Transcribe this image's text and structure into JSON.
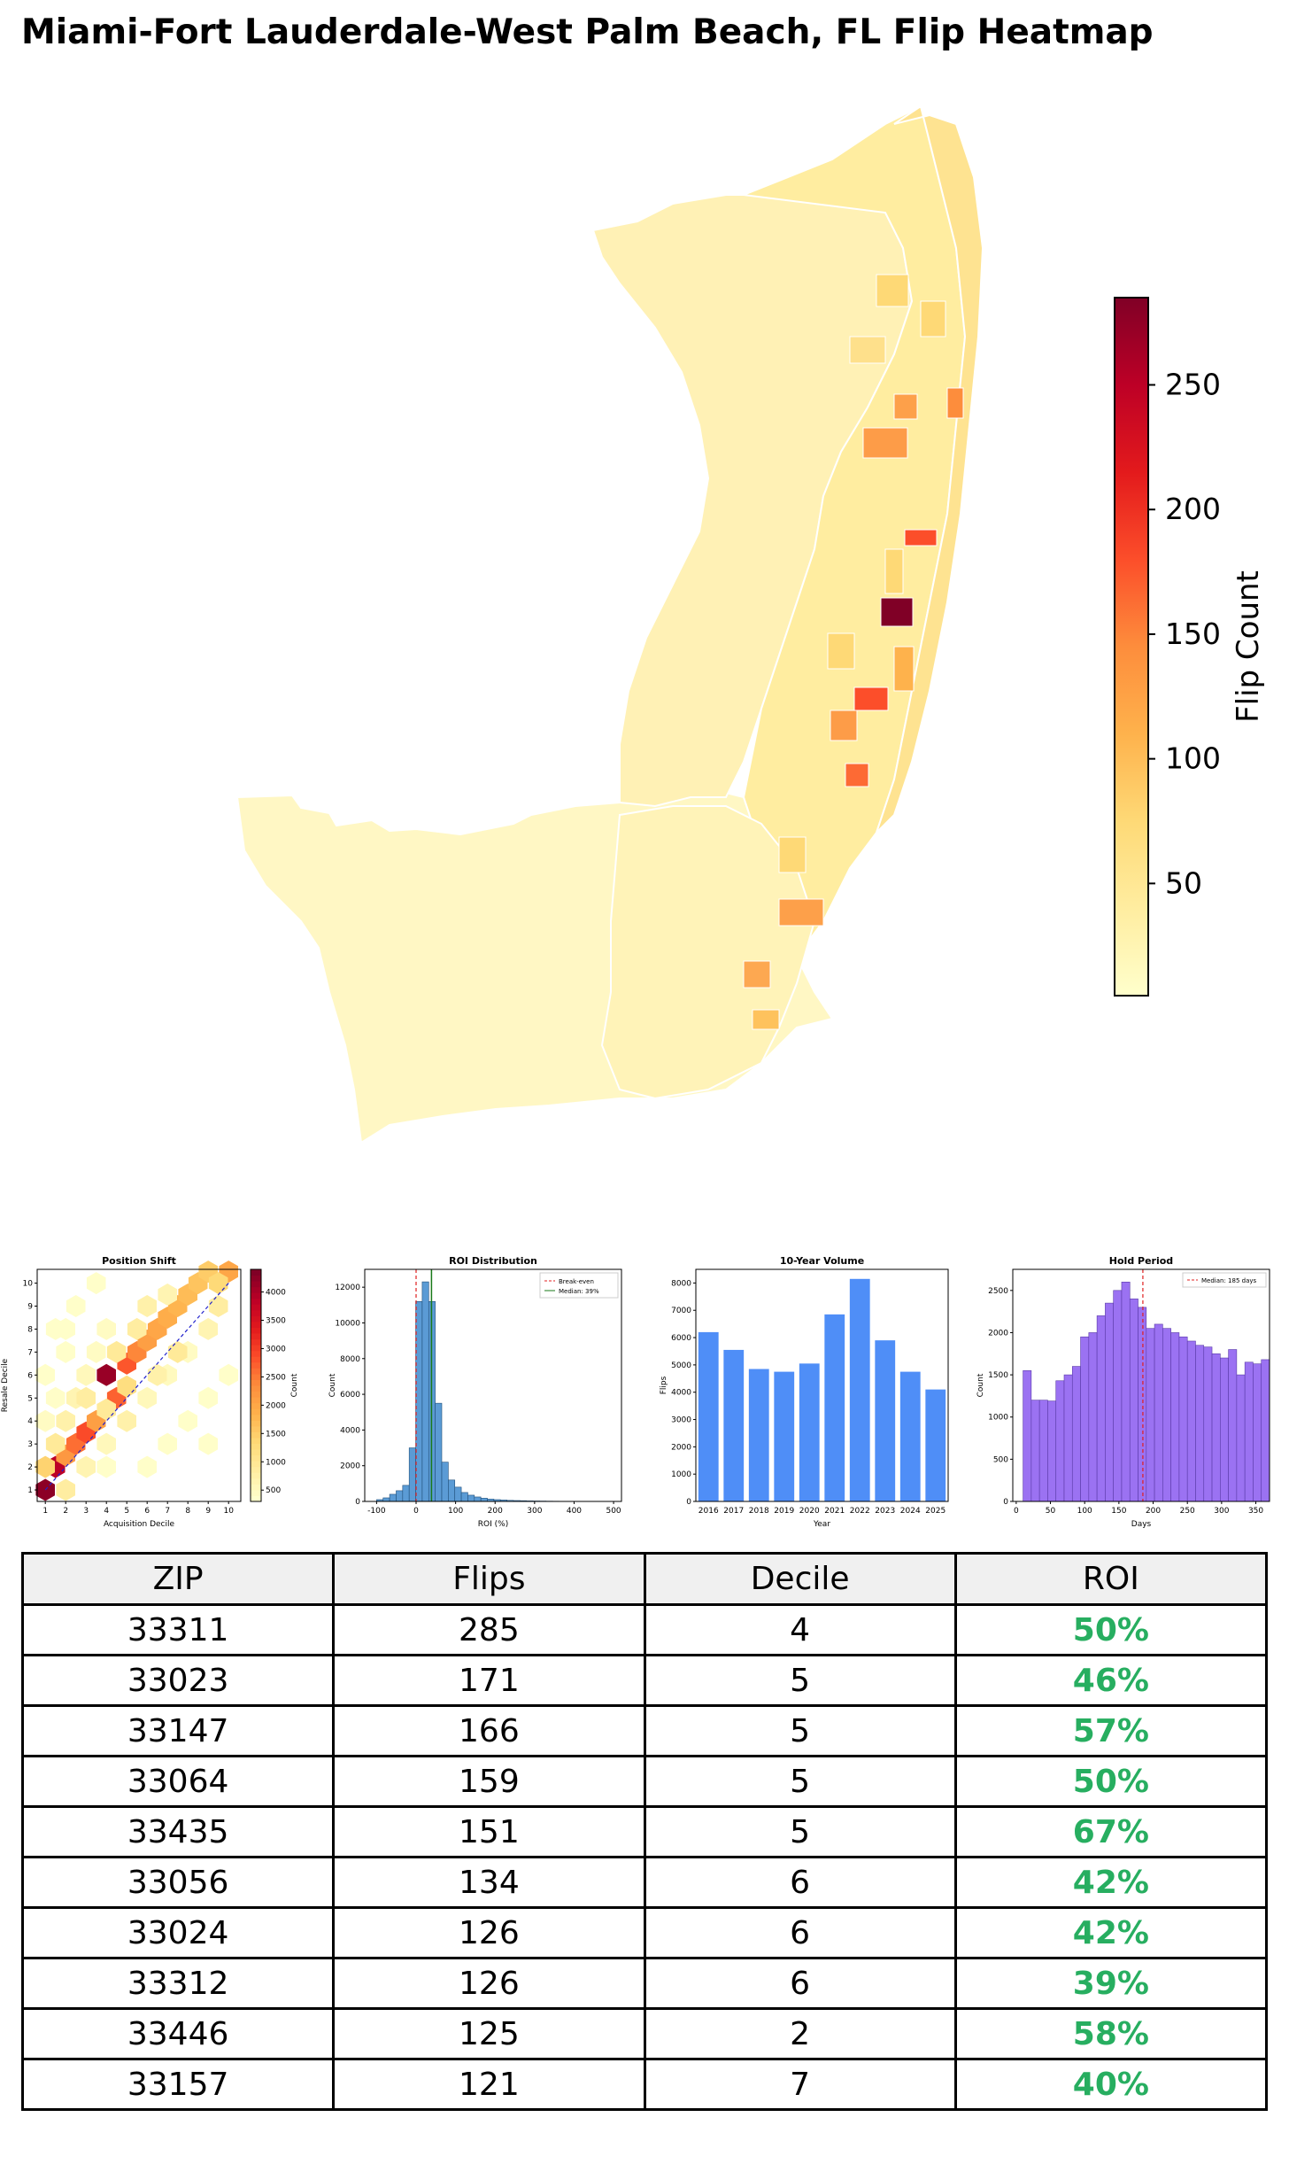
{
  "title": "Miami-Fort Lauderdale-West Palm Beach, FL Flip Heatmap",
  "colors": {
    "ylorrd": [
      "#ffffcc",
      "#ffeda0",
      "#fed976",
      "#feb24c",
      "#fd8d3c",
      "#fc4e2a",
      "#e31a1c",
      "#bd0026",
      "#800026"
    ],
    "roi_green": "#27ae60",
    "hist_blue": "#5b9bd5",
    "bar_blue": "#4f8ef7",
    "purple": "#9b72f2"
  },
  "map": {
    "colorbar": {
      "label": "Flip Count",
      "ticks": [
        50,
        100,
        150,
        200,
        250
      ],
      "min": 5,
      "max": 285
    },
    "highlighted_zip_values": [
      285,
      171,
      166,
      159,
      151,
      134,
      126,
      126,
      125,
      121
    ]
  },
  "chart_data": [
    {
      "type": "heatmap",
      "title": "Position Shift",
      "xlabel": "Acquisition Decile",
      "ylabel": "Resale Decile",
      "x_ticks": [
        1,
        2,
        3,
        4,
        5,
        6,
        7,
        8,
        9,
        10
      ],
      "y_ticks": [
        1,
        2,
        3,
        4,
        5,
        6,
        7,
        8,
        9,
        10
      ],
      "colorbar_label": "Count",
      "colorbar_ticks": [
        500,
        1000,
        1500,
        2000,
        2500,
        3000,
        3500,
        4000
      ],
      "colorbar_range": [
        300,
        4400
      ],
      "cells": [
        [
          1,
          1,
          4300
        ],
        [
          1.5,
          2,
          3900
        ],
        [
          2,
          2.5,
          2200
        ],
        [
          2.5,
          3,
          2600
        ],
        [
          3,
          3.5,
          2900
        ],
        [
          3.5,
          4,
          2100
        ],
        [
          1,
          2,
          1400
        ],
        [
          1.5,
          3,
          900
        ],
        [
          2,
          4,
          700
        ],
        [
          2.5,
          5,
          600
        ],
        [
          3,
          6,
          500
        ],
        [
          3.5,
          7,
          400
        ],
        [
          2,
          1,
          800
        ],
        [
          3,
          2,
          600
        ],
        [
          4,
          3,
          500
        ],
        [
          4,
          6,
          4200
        ],
        [
          4.5,
          5,
          2700
        ],
        [
          5,
          6.5,
          2800
        ],
        [
          5.5,
          7,
          2400
        ],
        [
          6,
          7.5,
          2100
        ],
        [
          6.5,
          8,
          2000
        ],
        [
          7,
          8.5,
          1900
        ],
        [
          7.5,
          9,
          1800
        ],
        [
          8,
          9.5,
          1700
        ],
        [
          8.5,
          10,
          1600
        ],
        [
          9,
          10.5,
          1500
        ],
        [
          10,
          10.5,
          2000
        ],
        [
          9.5,
          10,
          1300
        ],
        [
          4.5,
          7,
          900
        ],
        [
          5.5,
          8,
          800
        ],
        [
          6,
          9,
          700
        ],
        [
          7,
          9.5,
          600
        ],
        [
          1,
          4,
          400
        ],
        [
          1.5,
          5,
          350
        ],
        [
          1,
          6,
          330
        ],
        [
          2,
          7,
          330
        ],
        [
          5,
          4,
          700
        ],
        [
          6,
          5,
          500
        ],
        [
          7,
          6,
          450
        ],
        [
          8,
          7,
          400
        ],
        [
          6,
          2,
          330
        ],
        [
          7,
          3,
          330
        ],
        [
          8,
          4,
          330
        ],
        [
          9,
          5,
          330
        ],
        [
          10,
          6,
          330
        ],
        [
          1.5,
          8,
          330
        ],
        [
          2.5,
          9,
          330
        ],
        [
          3.5,
          10,
          330
        ],
        [
          3,
          5,
          800
        ],
        [
          4,
          4.5,
          900
        ],
        [
          5,
          5.5,
          1200
        ],
        [
          6.5,
          6,
          700
        ],
        [
          7.5,
          7,
          900
        ],
        [
          9,
          8,
          600
        ],
        [
          9.5,
          9,
          800
        ],
        [
          2,
          8,
          330
        ],
        [
          4,
          8,
          400
        ],
        [
          4,
          2,
          330
        ],
        [
          9,
          3,
          330
        ]
      ]
    },
    {
      "type": "bar",
      "title": "ROI Distribution",
      "xlabel": "ROI (%)",
      "ylabel": "Count",
      "xlim": [
        -130,
        520
      ],
      "ylim": [
        0,
        13000
      ],
      "x_ticks": [
        -100,
        0,
        100,
        200,
        300,
        400,
        500
      ],
      "y_ticks": [
        0,
        2000,
        4000,
        6000,
        8000,
        10000,
        12000
      ],
      "bin_width": 16.5,
      "bin_starts": [
        -100,
        -83.5,
        -67,
        -50.5,
        -34,
        -17.5,
        -1,
        15.5,
        32,
        48.5,
        65,
        81.5,
        98,
        114.5,
        131,
        147.5,
        164,
        180.5,
        197,
        213.5,
        230,
        246.5,
        263,
        279.5,
        296,
        312.5,
        329,
        345.5,
        362,
        378.5,
        395,
        411.5,
        428,
        444.5,
        461,
        477.5
      ],
      "counts": [
        100,
        200,
        400,
        600,
        900,
        3000,
        11200,
        12300,
        11200,
        5500,
        2200,
        1200,
        800,
        500,
        350,
        250,
        180,
        130,
        100,
        80,
        60,
        50,
        40,
        30,
        25,
        20,
        15,
        12,
        10,
        8,
        6,
        5,
        4,
        3,
        2,
        2
      ],
      "legend": [
        "Break-even",
        "Median: 39%"
      ],
      "median": 39
    },
    {
      "type": "bar",
      "title": "10-Year Volume",
      "xlabel": "Year",
      "ylabel": "Flips",
      "ylim": [
        0,
        8500
      ],
      "y_ticks": [
        0,
        1000,
        2000,
        3000,
        4000,
        5000,
        6000,
        7000,
        8000
      ],
      "categories": [
        "2016",
        "2017",
        "2018",
        "2019",
        "2020",
        "2021",
        "2022",
        "2023",
        "2024",
        "2025"
      ],
      "values": [
        6200,
        5550,
        4850,
        4750,
        5050,
        6850,
        8150,
        5900,
        4750,
        4100
      ]
    },
    {
      "type": "bar",
      "title": "Hold Period",
      "xlabel": "Days",
      "ylabel": "Count",
      "xlim": [
        -5,
        370
      ],
      "ylim": [
        0,
        2750
      ],
      "x_ticks": [
        0,
        50,
        100,
        150,
        200,
        250,
        300,
        350
      ],
      "y_ticks": [
        0,
        500,
        1000,
        1500,
        2000,
        2500
      ],
      "bin_width": 12,
      "bin_starts": [
        10,
        22,
        34,
        46,
        58,
        70,
        82,
        94,
        106,
        118,
        130,
        142,
        154,
        166,
        178,
        190,
        202,
        214,
        226,
        238,
        250,
        262,
        274,
        286,
        298,
        310,
        322,
        334,
        346,
        358
      ],
      "counts": [
        1550,
        1200,
        1200,
        1190,
        1430,
        1500,
        1600,
        1950,
        2000,
        2200,
        2350,
        2500,
        2600,
        2400,
        2300,
        2050,
        2100,
        2050,
        2000,
        1950,
        1900,
        1850,
        1830,
        1750,
        1700,
        1800,
        1500,
        1650,
        1630,
        1680
      ],
      "legend": [
        "Median: 185 days"
      ],
      "median": 185
    }
  ],
  "table": {
    "headers": [
      "ZIP",
      "Flips",
      "Decile",
      "ROI"
    ],
    "rows": [
      [
        "33311",
        "285",
        "4",
        "50%"
      ],
      [
        "33023",
        "171",
        "5",
        "46%"
      ],
      [
        "33147",
        "166",
        "5",
        "57%"
      ],
      [
        "33064",
        "159",
        "5",
        "50%"
      ],
      [
        "33435",
        "151",
        "5",
        "67%"
      ],
      [
        "33056",
        "134",
        "6",
        "42%"
      ],
      [
        "33024",
        "126",
        "6",
        "42%"
      ],
      [
        "33312",
        "126",
        "6",
        "39%"
      ],
      [
        "33446",
        "125",
        "2",
        "58%"
      ],
      [
        "33157",
        "121",
        "7",
        "40%"
      ]
    ]
  }
}
